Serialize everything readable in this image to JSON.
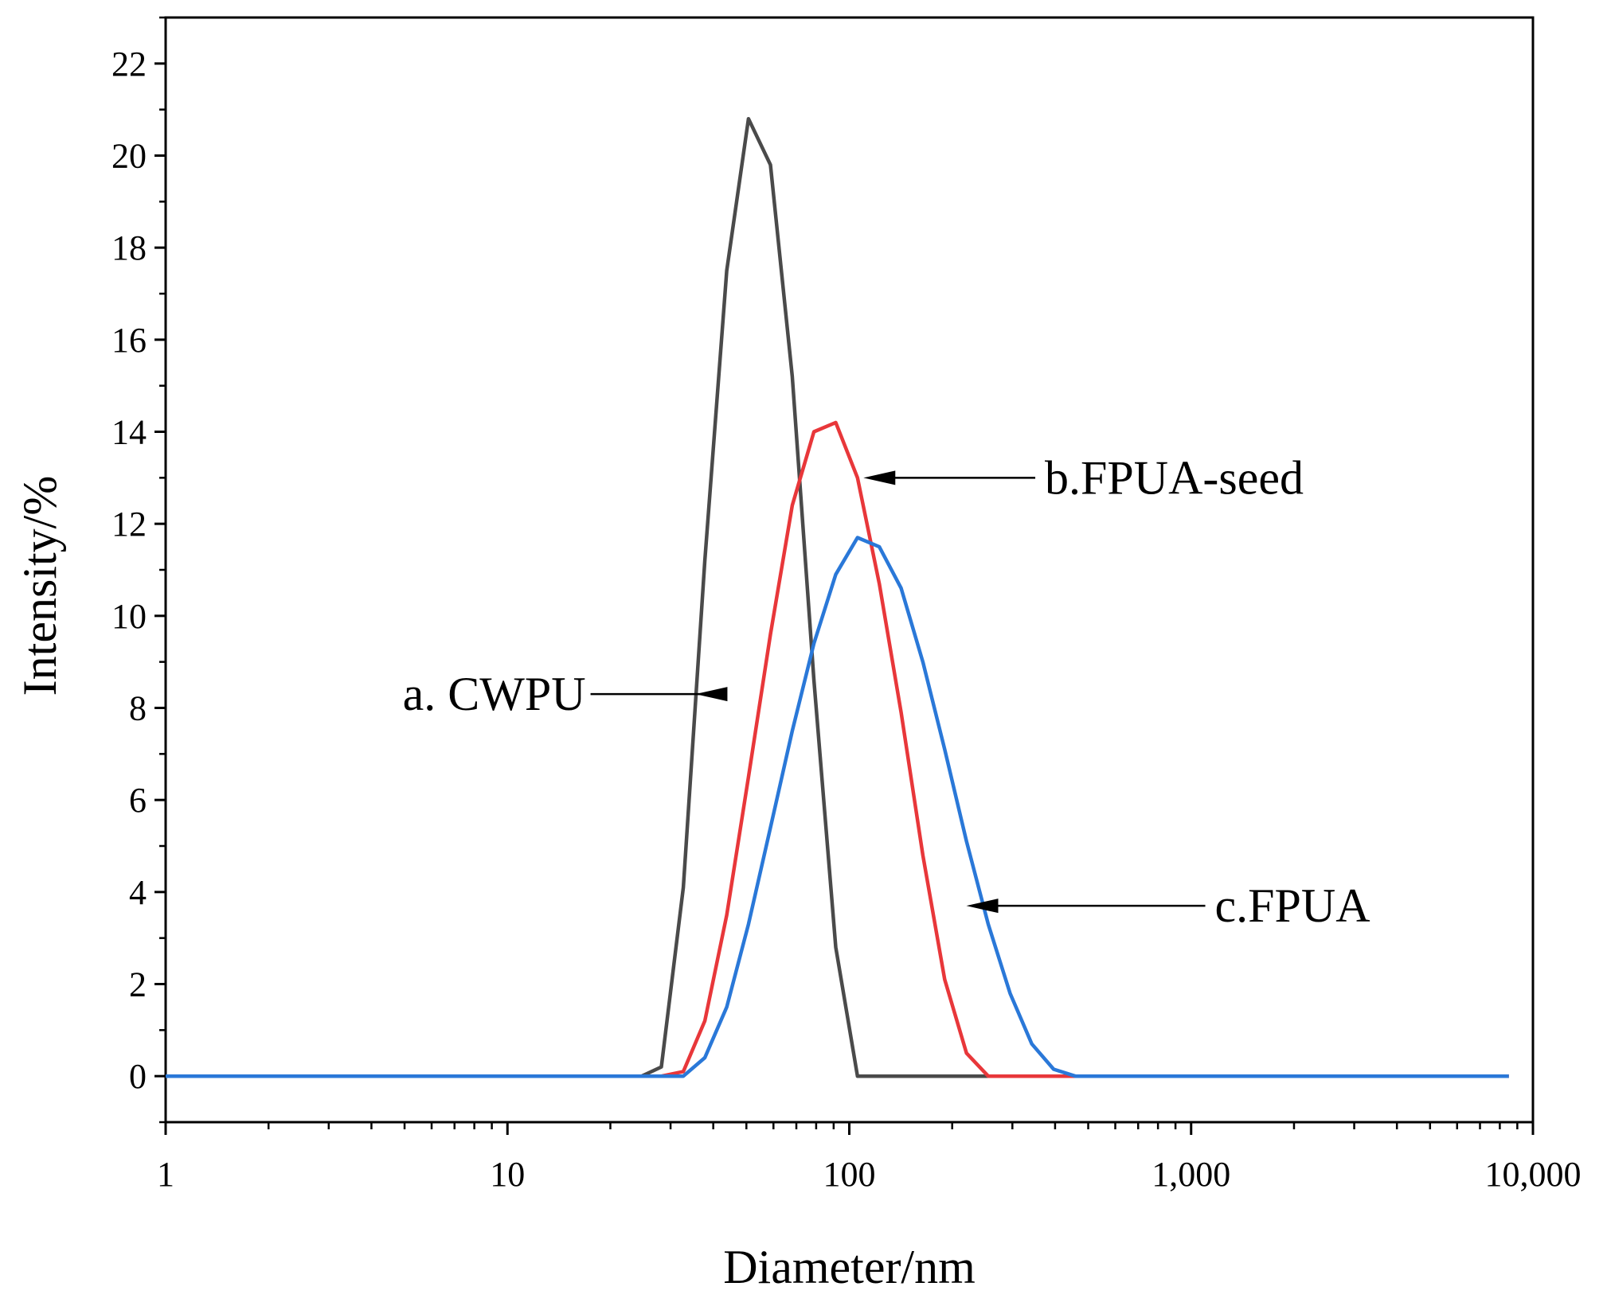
{
  "chart_data": {
    "type": "line",
    "title": "",
    "xlabel": "Diameter/nm",
    "ylabel": "Intensity/%",
    "xscale": "log",
    "xlim": [
      1,
      10000
    ],
    "ylim": [
      -1,
      23
    ],
    "grid": false,
    "x_ticks": [
      {
        "value": 1,
        "label": "1"
      },
      {
        "value": 10,
        "label": "10"
      },
      {
        "value": 100,
        "label": "100"
      },
      {
        "value": 1000,
        "label": "1,000"
      },
      {
        "value": 10000,
        "label": "10,000"
      }
    ],
    "y_ticks": [
      {
        "value": 0,
        "label": "0"
      },
      {
        "value": 2,
        "label": "2"
      },
      {
        "value": 4,
        "label": "4"
      },
      {
        "value": 6,
        "label": "6"
      },
      {
        "value": 8,
        "label": "8"
      },
      {
        "value": 10,
        "label": "10"
      },
      {
        "value": 12,
        "label": "12"
      },
      {
        "value": 14,
        "label": "14"
      },
      {
        "value": 16,
        "label": "16"
      },
      {
        "value": 18,
        "label": "18"
      },
      {
        "value": 20,
        "label": "20"
      },
      {
        "value": 22,
        "label": "22"
      }
    ],
    "series": [
      {
        "name": "a. CWPU",
        "color": "#4a4a4a",
        "x": [
          1,
          24.7,
          28.2,
          32.7,
          37.8,
          43.8,
          50.7,
          58.8,
          68.1,
          78.8,
          91.3,
          105.7,
          122.4,
          1000,
          8500
        ],
        "y": [
          0,
          0,
          0.2,
          4.1,
          11.2,
          17.5,
          20.8,
          19.8,
          15.2,
          8.6,
          2.8,
          0,
          0,
          0,
          0
        ]
      },
      {
        "name": "b.FPUA-seed",
        "color": "#e8373a",
        "x": [
          1,
          28.2,
          32.7,
          37.8,
          43.8,
          50.7,
          58.8,
          68.1,
          78.8,
          91.3,
          105.7,
          122.4,
          141.8,
          164.2,
          190.1,
          220.2,
          255.0,
          295.3,
          400,
          1000,
          8500
        ],
        "y": [
          0,
          0,
          0.1,
          1.2,
          3.5,
          6.5,
          9.6,
          12.4,
          14.0,
          14.2,
          13.0,
          10.7,
          7.9,
          4.8,
          2.1,
          0.5,
          0,
          0,
          0,
          0,
          0
        ]
      },
      {
        "name": "c.FPUA",
        "color": "#2a78d8",
        "x": [
          1,
          32.7,
          37.8,
          43.8,
          50.7,
          58.8,
          68.1,
          78.8,
          91.3,
          105.7,
          122.4,
          141.8,
          164.2,
          190.1,
          220.2,
          255.0,
          295.3,
          342.0,
          396.1,
          458.7,
          1000,
          8500
        ],
        "y": [
          0,
          0,
          0.4,
          1.5,
          3.3,
          5.4,
          7.5,
          9.4,
          10.9,
          11.7,
          11.5,
          10.6,
          9.0,
          7.1,
          5.1,
          3.3,
          1.8,
          0.7,
          0.15,
          0,
          0,
          0
        ]
      }
    ],
    "annotations": [
      {
        "text": "a. CWPU",
        "series": "a. CWPU",
        "arrow_to": {
          "x": 35.5,
          "y": 8.3
        },
        "text_at": {
          "x": 17.5,
          "y": 8.3
        }
      },
      {
        "text": "b.FPUA-seed",
        "series": "b.FPUA-seed",
        "arrow_to": {
          "x": 110,
          "y": 13.0
        },
        "text_at": {
          "x": 350,
          "y": 13.0
        }
      },
      {
        "text": "c.FPUA",
        "series": "c.FPUA",
        "arrow_to": {
          "x": 220,
          "y": 3.7
        },
        "text_at": {
          "x": 1100,
          "y": 3.7
        }
      }
    ]
  }
}
